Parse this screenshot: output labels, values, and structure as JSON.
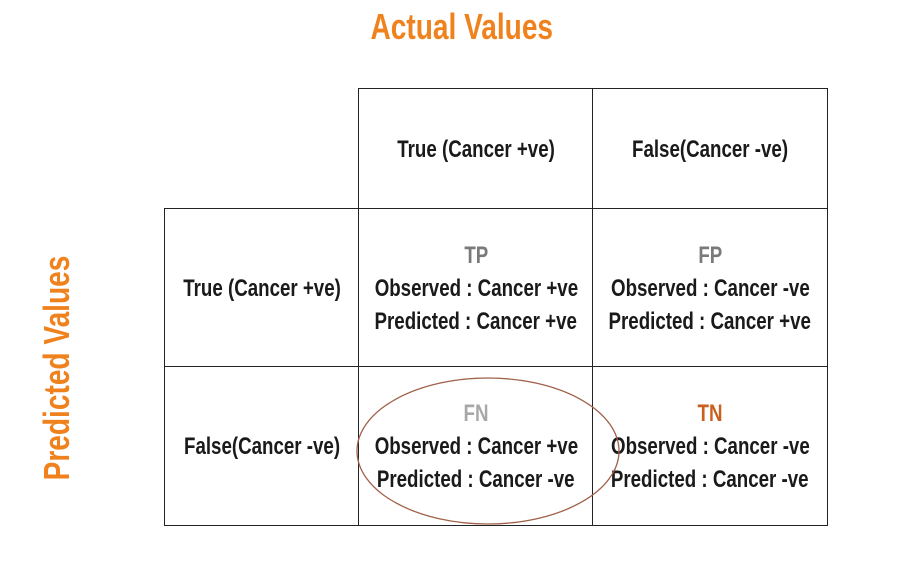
{
  "titles": {
    "actual": "Actual Values",
    "predicted": "Predicted Values"
  },
  "column_headers": [
    "True (Cancer +ve)",
    "False(Cancer -ve)"
  ],
  "row_headers": [
    "True (Cancer +ve)",
    "False(Cancer -ve)"
  ],
  "cells": {
    "tp": {
      "abbr": "TP",
      "observed": "Observed : Cancer +ve",
      "predicted": "Predicted : Cancer +ve"
    },
    "fp": {
      "abbr": "FP",
      "observed": "Observed : Cancer -ve",
      "predicted": "Predicted : Cancer +ve"
    },
    "fn": {
      "abbr": "FN",
      "observed": "Observed : Cancer +ve",
      "predicted": "Predicted : Cancer -ve"
    },
    "tn": {
      "abbr": "TN",
      "observed": "Observed : Cancer -ve",
      "predicted": "Predicted : Cancer -ve"
    }
  },
  "colors": {
    "title": "#f0821e",
    "abbr_gray": "#7a7a7a",
    "abbr_light": "#a8a8a8",
    "abbr_tn": "#c8601e",
    "ellipse": "#a06048"
  },
  "highlight": "FN"
}
